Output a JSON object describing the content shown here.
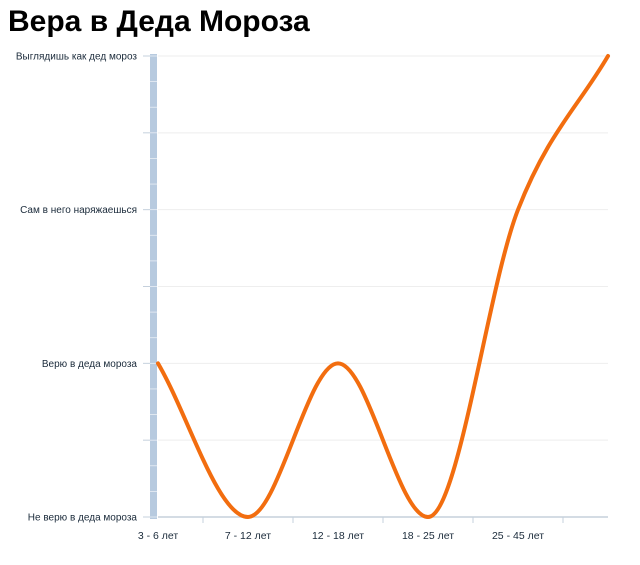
{
  "chart_data": {
    "type": "line",
    "title": "Вера в Деда Мороза",
    "xlabel": "",
    "ylabel": "",
    "categories": [
      "3 - 6 лет",
      "7 - 12 лет",
      "12 - 18 лет",
      "18 - 25 лет",
      "25 - 45 лет",
      ""
    ],
    "y_categories": [
      "Не верю в деда мороза",
      "Верю в деда мороза",
      "Сам в него наряжаешься",
      "Выглядишь как дед мороз"
    ],
    "ylim": [
      0,
      3
    ],
    "series": [
      {
        "color": "#f26d0f",
        "smooth": true,
        "points": [
          {
            "x": 0,
            "y": 1
          },
          {
            "x": 1,
            "y": 0
          },
          {
            "x": 2,
            "y": 1
          },
          {
            "x": 3,
            "y": 0
          },
          {
            "x": 4,
            "y": 2
          },
          {
            "x": 5,
            "y": 3
          }
        ]
      }
    ],
    "grid": true,
    "legend": "none"
  },
  "colors": {
    "line": "#f26d0f",
    "y_axis_bar": "#b7cadf",
    "grid": "#eeeeee",
    "axis": "#c5d0dc",
    "label": "#1a2a3a"
  }
}
